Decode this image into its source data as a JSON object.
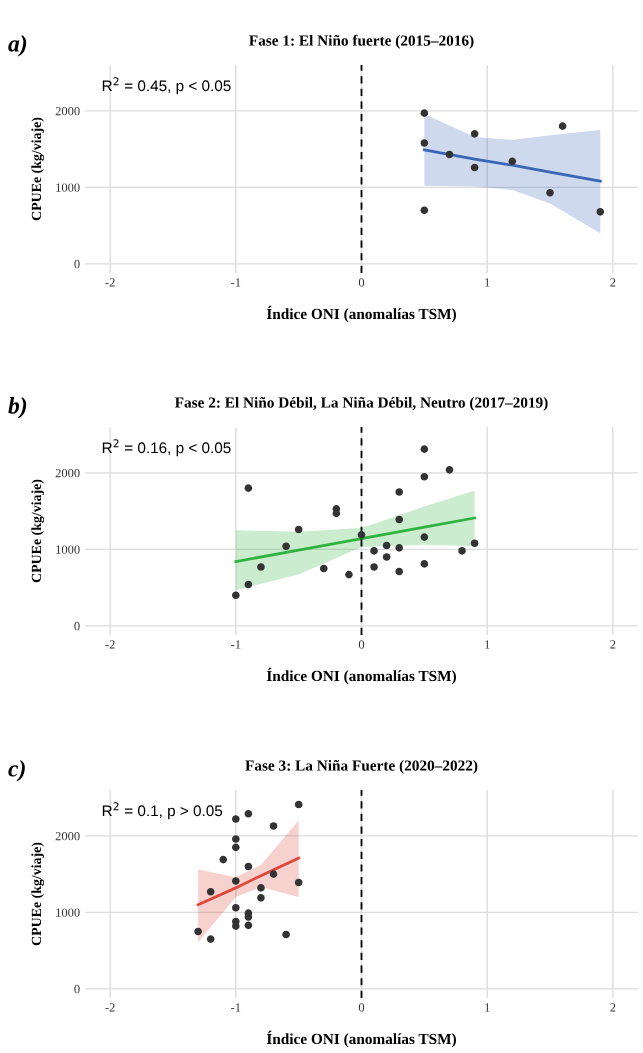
{
  "chart_data": [
    {
      "type": "scatter",
      "title": "Fase 1: El Niño fuerte (2015–2016)",
      "xlabel": "Índice ONI (anomalías TSM)",
      "ylabel": "CPUEe (kg/viaje)",
      "annotations": [
        "a)",
        "R$^{2}$ = 0.45, p < 0.05"
      ],
      "xlim": [
        -2.2,
        2.2
      ],
      "xticks": [
        -2,
        -1,
        0,
        1,
        2
      ],
      "ylim": [
        -120,
        2600
      ],
      "yticks": [
        0,
        1000,
        2000
      ],
      "grid": true,
      "marker": "circle",
      "ref_lines": [
        {
          "axis": "x",
          "value": 0,
          "color": "#000000",
          "line_style": "dashed"
        }
      ],
      "series": [
        {
          "color": "#333333",
          "x": [
            0.5,
            0.5,
            0.5,
            0.7,
            0.9,
            0.9,
            1.2,
            1.5,
            1.6,
            1.9
          ],
          "values": [
            1970,
            1580,
            700,
            1430,
            1700,
            1260,
            1340,
            930,
            1800,
            680
          ]
        },
        {
          "type": "line",
          "color": "#3a66b8",
          "line_style": "solid",
          "x": [
            0.5,
            0.9,
            1.2,
            1.5,
            1.9
          ],
          "marker": "none",
          "values": [
            1490,
            1370,
            1290,
            1200,
            1080
          ],
          "lower": [
            1020,
            1010,
            965,
            790,
            400
          ],
          "upper": [
            1960,
            1660,
            1620,
            1680,
            1750
          ]
        }
      ]
    },
    {
      "type": "scatter",
      "title": "Fase 2: El Niño Débil, La Niña Débil, Neutro (2017–2019)",
      "xlabel": "Índice ONI (anomalías TSM)",
      "ylabel": "CPUEe (kg/viaje)",
      "annotations": [
        "b)",
        "R$^{2}$ = 0.16, p < 0.05"
      ],
      "xlim": [
        -2.2,
        2.2
      ],
      "xticks": [
        -2,
        -1,
        0,
        1,
        2
      ],
      "ylim": [
        -120,
        2600
      ],
      "yticks": [
        0,
        1000,
        2000
      ],
      "grid": true,
      "marker": "circle",
      "ref_lines": [
        {
          "axis": "x",
          "value": 0,
          "color": "#000000",
          "line_style": "dashed"
        }
      ],
      "series": [
        {
          "color": "#333333",
          "x": [
            -1.0,
            -0.9,
            -0.9,
            -0.8,
            -0.6,
            -0.5,
            -0.3,
            -0.2,
            -0.2,
            -0.1,
            0.0,
            0.1,
            0.1,
            0.2,
            0.2,
            0.3,
            0.3,
            0.3,
            0.3,
            0.5,
            0.5,
            0.5,
            0.5,
            0.7,
            0.8,
            0.9
          ],
          "values": [
            400,
            540,
            1800,
            770,
            1040,
            1260,
            750,
            1530,
            1470,
            670,
            1190,
            980,
            770,
            900,
            1050,
            1750,
            1390,
            1020,
            710,
            2310,
            1950,
            1160,
            810,
            2040,
            980,
            1080
          ]
        },
        {
          "type": "line",
          "color": "#2fb33f",
          "line_style": "solid",
          "x": [
            -1.0,
            -0.5,
            0.0,
            0.5,
            0.9
          ],
          "marker": "none",
          "values": [
            840,
            990,
            1140,
            1290,
            1410
          ],
          "lower": [
            470,
            670,
            1030,
            1060,
            1040
          ],
          "upper": [
            1250,
            1230,
            1280,
            1560,
            1770
          ]
        }
      ]
    },
    {
      "type": "scatter",
      "title": "Fase 3: La Niña Fuerte (2020–2022)",
      "xlabel": "Índice ONI (anomalías TSM)",
      "ylabel": "CPUEe (kg/viaje)",
      "annotations": [
        "c)",
        "R$^{2}$ = 0.1, p > 0.05"
      ],
      "xlim": [
        -2.2,
        2.2
      ],
      "xticks": [
        -2,
        -1,
        0,
        1,
        2
      ],
      "ylim": [
        -120,
        2600
      ],
      "yticks": [
        0,
        1000,
        2000
      ],
      "grid": true,
      "marker": "circle",
      "ref_lines": [
        {
          "axis": "x",
          "value": 0,
          "color": "#000000",
          "line_style": "dashed"
        }
      ],
      "series": [
        {
          "color": "#333333",
          "x": [
            -1.3,
            -1.2,
            -1.2,
            -1.1,
            -1.0,
            -1.0,
            -1.0,
            -1.0,
            -1.0,
            -1.0,
            -1.0,
            -0.9,
            -0.9,
            -0.9,
            -0.9,
            -0.9,
            -0.8,
            -0.8,
            -0.7,
            -0.7,
            -0.6,
            -0.5,
            -0.5
          ],
          "values": [
            750,
            650,
            1270,
            1690,
            2220,
            1960,
            1850,
            1410,
            1060,
            880,
            820,
            2290,
            1600,
            990,
            940,
            830,
            1320,
            1190,
            2130,
            1500,
            710,
            2410,
            1390
          ]
        },
        {
          "type": "line",
          "color": "#e0473a",
          "line_style": "solid",
          "x": [
            -1.3,
            -1.0,
            -0.8,
            -0.5
          ],
          "marker": "none",
          "values": [
            1100,
            1320,
            1480,
            1710
          ],
          "lower": [
            610,
            1200,
            1330,
            1200
          ],
          "upper": [
            1560,
            1460,
            1620,
            2200
          ]
        }
      ]
    }
  ]
}
